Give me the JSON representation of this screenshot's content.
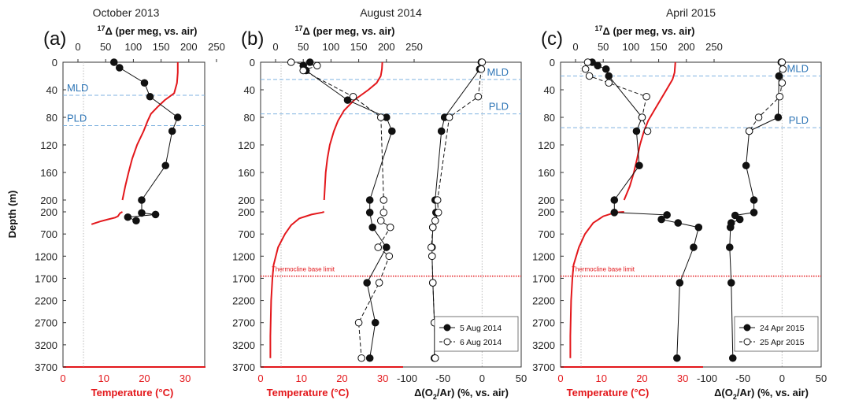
{
  "chart_data": [
    {
      "type": "scatter",
      "title": "October 2013",
      "panel_letter": "(a)",
      "top_axis_label": "17Δ (per meg, vs. air)",
      "xlim_17D": [
        0,
        250
      ],
      "xticks_17D": [
        "0",
        "50",
        "100",
        "150",
        "200",
        "250"
      ],
      "bottom_axis_label": "Temperature (°C)",
      "xlim_temp": [
        0,
        35
      ],
      "xticks_temp": [
        "0",
        "10",
        "20",
        "30"
      ],
      "ylabel": "Depth (m)",
      "depth_ticks_upper": [
        "0",
        "40",
        "80",
        "120",
        "160",
        "200"
      ],
      "depth_ticks_lower": [
        "200",
        "700",
        "1200",
        "1700",
        "2200",
        "2700",
        "3200",
        "3700"
      ],
      "levels": [
        {
          "label": "MLD",
          "depth": 48
        },
        {
          "label": "PLD",
          "depth": 92
        }
      ],
      "temperature_profile": [
        [
          0,
          28.2
        ],
        [
          15,
          28.2
        ],
        [
          30,
          28.0
        ],
        [
          45,
          27.3
        ],
        [
          55,
          25.0
        ],
        [
          65,
          23.2
        ],
        [
          75,
          21.6
        ],
        [
          85,
          20.8
        ],
        [
          100,
          19.8
        ],
        [
          120,
          18.2
        ],
        [
          140,
          17.0
        ],
        [
          160,
          16.1
        ],
        [
          180,
          15.3
        ],
        [
          200,
          14.6
        ],
        [
          230,
          14.0
        ],
        [
          300,
          13.5
        ],
        [
          330,
          12.8
        ],
        [
          370,
          11.0
        ],
        [
          420,
          9.0
        ],
        [
          480,
          7.0
        ]
      ],
      "series": [
        {
          "name": "",
          "style": "filled",
          "points": [
            [
              0,
              65
            ],
            [
              8,
              75
            ],
            [
              30,
              120
            ],
            [
              50,
              130
            ],
            [
              80,
              180
            ],
            [
              100,
              170
            ],
            [
              150,
              158
            ],
            [
              200,
              115
            ],
            [
              225,
              115
            ],
            [
              260,
              140
            ],
            [
              320,
              90
            ],
            [
              400,
              105
            ]
          ]
        }
      ]
    },
    {
      "type": "scatter",
      "title": "August 2014",
      "panel_letter": "(b)",
      "top_axis_label": "17Δ (per meg, vs. air)",
      "xlim_17D": [
        0,
        250
      ],
      "xticks_17D": [
        "0",
        "50",
        "100",
        "150",
        "200",
        "250"
      ],
      "bottom_axis_label": "Temperature (°C)",
      "xlim_temp": [
        0,
        35
      ],
      "xticks_temp": [
        "0",
        "10",
        "20",
        "30"
      ],
      "right_axis_label": "Δ(O2/Ar) (%, vs. air)",
      "xlim_dO2Ar": [
        -100,
        50
      ],
      "xticks_dO2Ar": [
        "-100",
        "-50",
        "0",
        "50"
      ],
      "ylabel": "Depth (m)",
      "depth_ticks_upper": [
        "0",
        "40",
        "80",
        "120",
        "160",
        "200"
      ],
      "depth_ticks_lower": [
        "200",
        "700",
        "1200",
        "1700",
        "2200",
        "2700",
        "3200",
        "3700"
      ],
      "levels": [
        {
          "label": "MLD",
          "depth": 25
        },
        {
          "label": "PLD",
          "depth": 75
        }
      ],
      "threshold": {
        "label": "Thermocline base limit",
        "depth": 1650
      },
      "legend": [
        "5 Aug 2014",
        "6 Aug 2014"
      ],
      "temperature_profile": [
        [
          0,
          29.9
        ],
        [
          10,
          29.8
        ],
        [
          20,
          29.5
        ],
        [
          30,
          28.5
        ],
        [
          40,
          26.5
        ],
        [
          55,
          23.0
        ],
        [
          70,
          20.5
        ],
        [
          85,
          19.0
        ],
        [
          100,
          18.0
        ],
        [
          120,
          17.0
        ],
        [
          140,
          16.4
        ],
        [
          160,
          16.0
        ],
        [
          180,
          15.8
        ],
        [
          200,
          15.6
        ],
        [
          215,
          15.1
        ],
        [
          260,
          12.5
        ],
        [
          350,
          9.5
        ],
        [
          500,
          7.5
        ],
        [
          700,
          6.0
        ],
        [
          1000,
          4.3
        ],
        [
          1400,
          3.2
        ],
        [
          1700,
          2.9
        ],
        [
          2200,
          2.6
        ],
        [
          3000,
          2.4
        ],
        [
          3500,
          2.4
        ]
      ],
      "series": [
        {
          "name": "5 Aug 2014",
          "style": "filled",
          "quantity": "17D",
          "points": [
            [
              0,
              62
            ],
            [
              5,
              50
            ],
            [
              12,
              55
            ],
            [
              55,
              130
            ],
            [
              80,
              200
            ],
            [
              100,
              210
            ],
            [
              200,
              170
            ],
            [
              215,
              170
            ],
            [
              550,
              175
            ],
            [
              1000,
              200
            ],
            [
              1800,
              165
            ],
            [
              2700,
              180
            ],
            [
              3500,
              170
            ]
          ]
        },
        {
          "name": "6 Aug 2014",
          "style": "open",
          "quantity": "17D",
          "points": [
            [
              0,
              28
            ],
            [
              5,
              75
            ],
            [
              12,
              50
            ],
            [
              50,
              140
            ],
            [
              80,
              190
            ],
            [
              200,
              195
            ],
            [
              215,
              195
            ],
            [
              400,
              190
            ],
            [
              550,
              207
            ],
            [
              1000,
              185
            ],
            [
              1200,
              205
            ],
            [
              1800,
              187
            ],
            [
              2700,
              150
            ],
            [
              3500,
              155
            ]
          ]
        },
        {
          "name": "5 Aug 2014",
          "style": "filled",
          "quantity": "dO2Ar",
          "points": [
            [
              0,
              -1
            ],
            [
              10,
              -3
            ],
            [
              80,
              -48
            ],
            [
              100,
              -52
            ],
            [
              200,
              -60
            ],
            [
              215,
              -59
            ],
            [
              550,
              -63
            ],
            [
              1000,
              -64
            ],
            [
              1200,
              -64
            ],
            [
              1800,
              -63
            ],
            [
              2700,
              -61
            ],
            [
              3500,
              -61
            ]
          ]
        },
        {
          "name": "6 Aug 2014",
          "style": "open",
          "quantity": "dO2Ar",
          "points": [
            [
              0,
              0
            ],
            [
              10,
              -1
            ],
            [
              50,
              -5
            ],
            [
              80,
              -42
            ],
            [
              200,
              -57
            ],
            [
              215,
              -56
            ],
            [
              400,
              -60
            ],
            [
              550,
              -63
            ],
            [
              1000,
              -65
            ],
            [
              1200,
              -64
            ],
            [
              1800,
              -63
            ],
            [
              2700,
              -61
            ],
            [
              3500,
              -60
            ]
          ]
        }
      ]
    },
    {
      "type": "scatter",
      "title": "April 2015",
      "panel_letter": "(c)",
      "top_axis_label": "17Δ (per meg, vs. air)",
      "xlim_17D": [
        0,
        250
      ],
      "xticks_17D": [
        "0",
        "50",
        "100",
        "150",
        "200",
        "250"
      ],
      "bottom_axis_label": "Temperature (°C)",
      "xlim_temp": [
        0,
        35
      ],
      "xticks_temp": [
        "0",
        "10",
        "20",
        "30"
      ],
      "right_axis_label": "Δ(O2/Ar) (%, vs. air)",
      "xlim_dO2Ar": [
        -100,
        50
      ],
      "xticks_dO2Ar": [
        "-100",
        "-50",
        "0",
        "50"
      ],
      "ylabel": "Depth (m)",
      "depth_ticks_upper": [
        "0",
        "40",
        "80",
        "120",
        "160",
        "200"
      ],
      "depth_ticks_lower": [
        "200",
        "700",
        "1200",
        "1700",
        "2200",
        "2700",
        "3200",
        "3700"
      ],
      "levels": [
        {
          "label": "MLD",
          "depth": 20
        },
        {
          "label": "PLD",
          "depth": 95
        }
      ],
      "threshold": {
        "label": "Thermocline base limit",
        "depth": 1650
      },
      "legend": [
        "24 Apr 2015",
        "25 Apr 2015"
      ],
      "temperature_profile": [
        [
          0,
          28.2
        ],
        [
          15,
          28.0
        ],
        [
          25,
          27.5
        ],
        [
          40,
          26.0
        ],
        [
          55,
          24.5
        ],
        [
          70,
          23.0
        ],
        [
          85,
          21.5
        ],
        [
          100,
          20.5
        ],
        [
          120,
          19.5
        ],
        [
          140,
          18.8
        ],
        [
          160,
          18.0
        ],
        [
          180,
          17.0
        ],
        [
          200,
          15.6
        ],
        [
          210,
          14.0
        ],
        [
          240,
          12.5
        ],
        [
          300,
          10.5
        ],
        [
          450,
          8.0
        ],
        [
          700,
          6.0
        ],
        [
          1000,
          4.5
        ],
        [
          1400,
          3.2
        ],
        [
          1700,
          2.9
        ],
        [
          2200,
          2.6
        ],
        [
          3000,
          2.4
        ],
        [
          3500,
          2.4
        ]
      ],
      "series": [
        {
          "name": "24 Apr 2015",
          "style": "filled",
          "quantity": "17D",
          "points": [
            [
              0,
              30
            ],
            [
              5,
              40
            ],
            [
              10,
              55
            ],
            [
              20,
              60
            ],
            [
              80,
              120
            ],
            [
              100,
              110
            ],
            [
              150,
              115
            ],
            [
              200,
              70
            ],
            [
              215,
              70
            ],
            [
              270,
              165
            ],
            [
              370,
              155
            ],
            [
              450,
              185
            ],
            [
              550,
              222
            ],
            [
              1000,
              213
            ],
            [
              1800,
              188
            ],
            [
              3500,
              183
            ]
          ]
        },
        {
          "name": "25 Apr 2015",
          "style": "open",
          "quantity": "17D",
          "points": [
            [
              0,
              22
            ],
            [
              10,
              18
            ],
            [
              20,
              25
            ],
            [
              30,
              60
            ],
            [
              50,
              128
            ],
            [
              80,
              120
            ],
            [
              100,
              130
            ]
          ]
        },
        {
          "name": "24 Apr 2015",
          "style": "filled",
          "quantity": "dO2Ar",
          "points": [
            [
              0,
              -1
            ],
            [
              20,
              -4
            ],
            [
              80,
              -5
            ],
            [
              100,
              -42
            ],
            [
              150,
              -46
            ],
            [
              200,
              -36
            ],
            [
              215,
              -36
            ],
            [
              280,
              -60
            ],
            [
              370,
              -54
            ],
            [
              450,
              -65
            ],
            [
              550,
              -66
            ],
            [
              1000,
              -67
            ],
            [
              1800,
              -65
            ],
            [
              3500,
              -63
            ]
          ]
        },
        {
          "name": "25 Apr 2015",
          "style": "open",
          "quantity": "dO2Ar",
          "points": [
            [
              0,
              0
            ],
            [
              10,
              1
            ],
            [
              30,
              0
            ],
            [
              50,
              -3
            ],
            [
              80,
              -30
            ],
            [
              100,
              -42
            ]
          ]
        }
      ]
    }
  ]
}
